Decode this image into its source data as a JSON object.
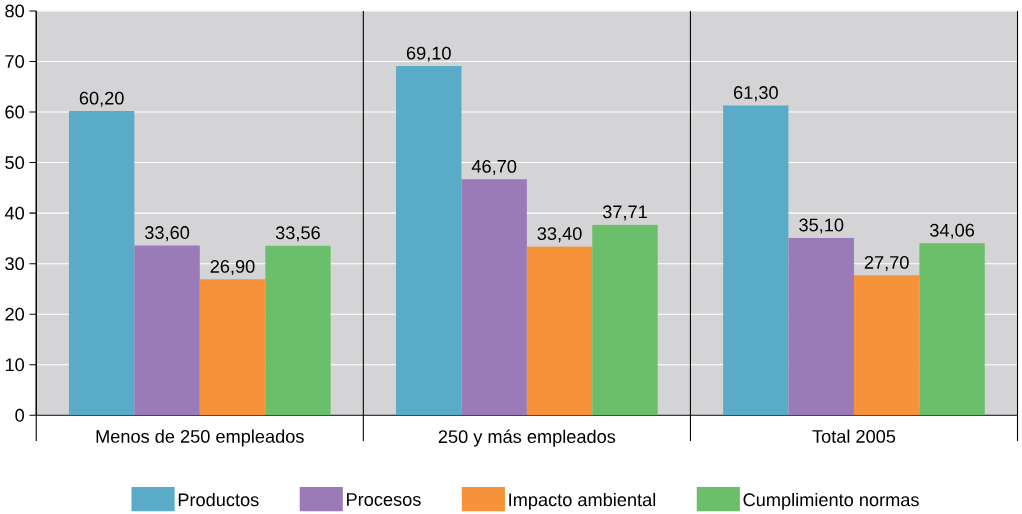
{
  "chart_data": {
    "type": "bar",
    "categories": [
      "Menos de 250 empleados",
      "250 y más empleados",
      "Total 2005"
    ],
    "series": [
      {
        "name": "Productos",
        "color": "#5aabc8",
        "values": [
          60.2,
          69.1,
          61.3
        ],
        "value_labels": [
          "60,20",
          "69,10",
          "61,30"
        ]
      },
      {
        "name": "Procesos",
        "color": "#9a7bb8",
        "values": [
          33.6,
          46.7,
          35.1
        ],
        "value_labels": [
          "33,60",
          "46,70",
          "35,10"
        ]
      },
      {
        "name": "Impacto ambiental",
        "color": "#f5923a",
        "values": [
          26.9,
          33.4,
          27.7
        ],
        "value_labels": [
          "26,90",
          "33,40",
          "27,70"
        ]
      },
      {
        "name": "Cumplimiento normas",
        "color": "#6bbf6a",
        "values": [
          33.56,
          37.71,
          34.06
        ],
        "value_labels": [
          "33,56",
          "37,71",
          "34,06"
        ]
      }
    ],
    "ylim": [
      0,
      80
    ],
    "yticks": [
      0,
      10,
      20,
      30,
      40,
      50,
      60,
      70,
      80
    ],
    "grid": "y",
    "legend": "bottom"
  }
}
